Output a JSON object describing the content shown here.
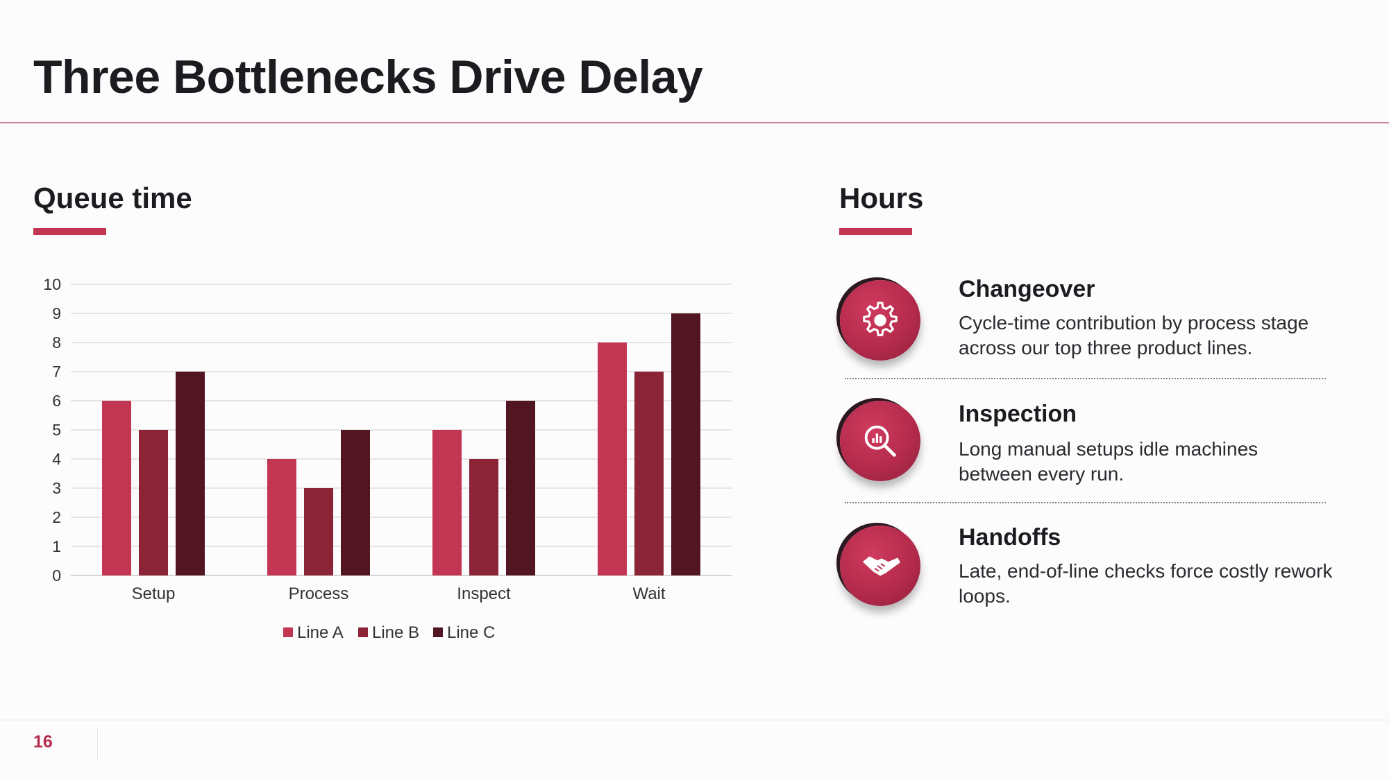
{
  "slide": {
    "title": "Three Bottlenecks Drive Delay",
    "page_number": "16"
  },
  "left_panel": {
    "heading": "Queue time"
  },
  "right_panel": {
    "heading": "Hours",
    "items": [
      {
        "title": "Changeover",
        "description": "Cycle-time contribution by process stage across our top three product lines.",
        "icon": "gear-icon"
      },
      {
        "title": "Inspection",
        "description": "Long manual setups idle machines between every run.",
        "icon": "magnifier-chart-icon"
      },
      {
        "title": "Handoffs",
        "description": "Late, end-of-line checks force costly rework loops.",
        "icon": "handshake-icon"
      }
    ]
  },
  "colors": {
    "accent": "#c23553",
    "line_a": "#c23553",
    "line_b": "#8c2438",
    "line_c": "#521522"
  },
  "chart_data": {
    "type": "bar",
    "categories": [
      "Setup",
      "Process",
      "Inspect",
      "Wait"
    ],
    "series": [
      {
        "name": "Line A",
        "values": [
          6,
          4,
          5,
          8
        ]
      },
      {
        "name": "Line B",
        "values": [
          5,
          3,
          4,
          7
        ]
      },
      {
        "name": "Line C",
        "values": [
          7,
          5,
          6,
          9
        ]
      }
    ],
    "ylim": [
      0,
      10
    ],
    "yticks": [
      0,
      1,
      2,
      3,
      4,
      5,
      6,
      7,
      8,
      9,
      10
    ],
    "grid": true,
    "legend": "bottom"
  }
}
